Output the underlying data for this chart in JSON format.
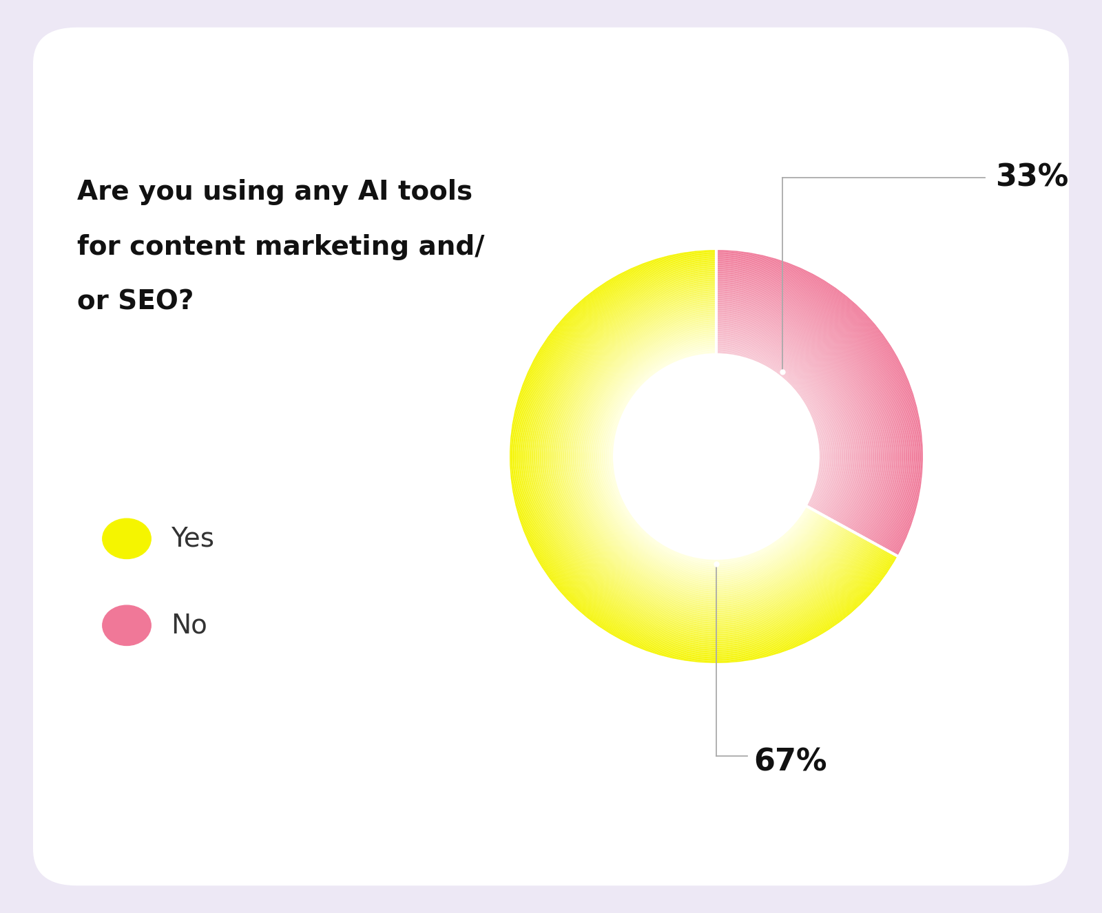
{
  "title_line1": "Are you using any AI tools",
  "title_line2": "for content marketing and/",
  "title_line3": "or SEO?",
  "values": [
    67,
    33
  ],
  "labels": [
    "Yes",
    "No"
  ],
  "yes_color_outer": "#f5f500",
  "yes_color_inner": "#f8f8c0",
  "no_color_outer": "#f07898",
  "no_color_inner": "#f8b0c0",
  "yes_pct": "67%",
  "no_pct": "33%",
  "legend_yes_color": "#f5f500",
  "legend_no_color": "#f07898",
  "bg_outer": "#ede8f5",
  "bg_inner": "#ffffff",
  "title_fontsize": 28,
  "label_fontsize": 32,
  "legend_fontsize": 28,
  "annotation_color": "#aaaaaa"
}
